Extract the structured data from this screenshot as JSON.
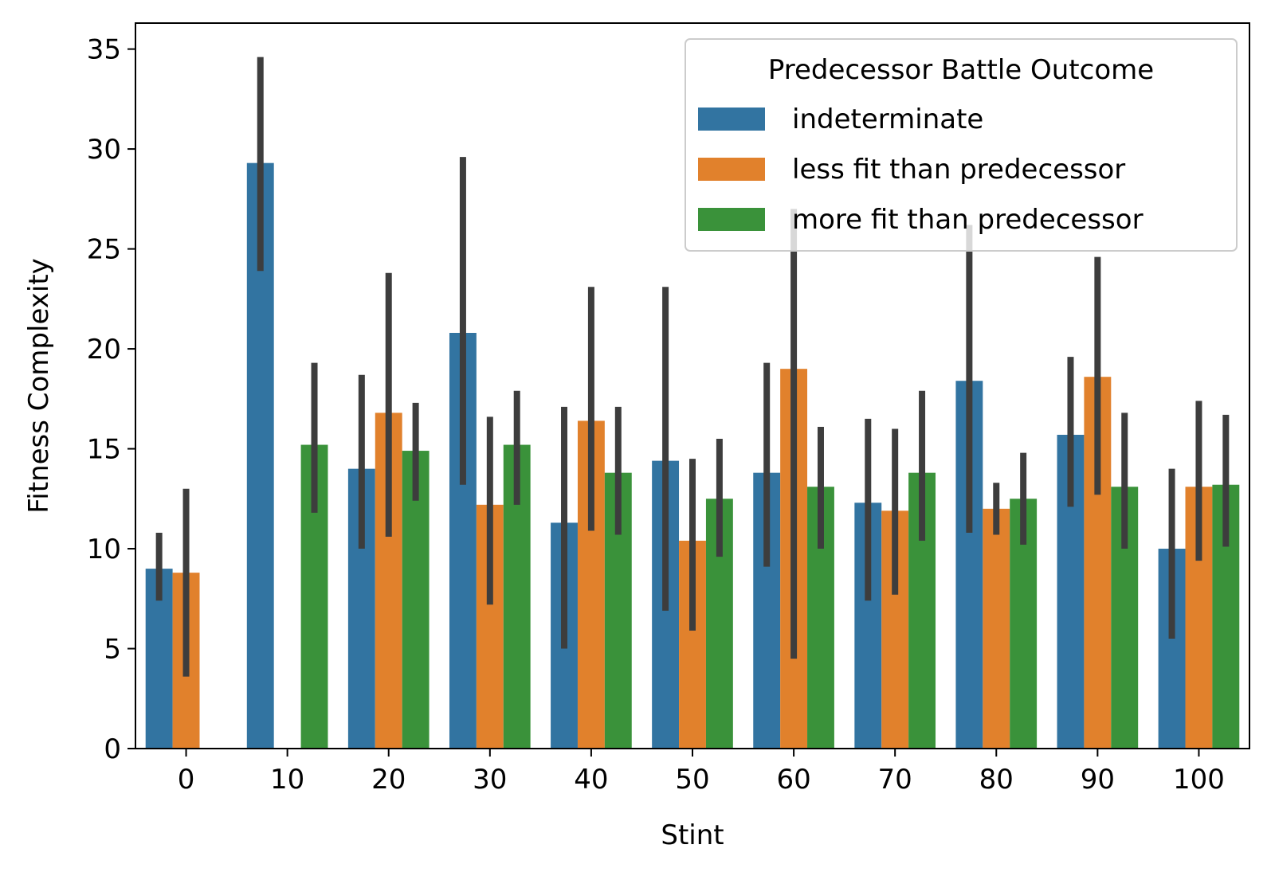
{
  "chart_data": {
    "type": "bar",
    "xlabel": "Stint",
    "ylabel": "Fitness Complexity",
    "ylim": [
      0,
      36.3
    ],
    "yticks": [
      0,
      5,
      10,
      15,
      20,
      25,
      30,
      35
    ],
    "categories": [
      "0",
      "10",
      "20",
      "30",
      "40",
      "50",
      "60",
      "70",
      "80",
      "90",
      "100"
    ],
    "legend": {
      "title": "Predecessor Battle Outcome",
      "placement": "top-right"
    },
    "grid": false,
    "series": [
      {
        "name": "indeterminate",
        "color": "#3274a1",
        "values": [
          9.0,
          29.3,
          14.0,
          20.8,
          11.3,
          14.4,
          13.8,
          12.3,
          18.4,
          15.7,
          10.0
        ],
        "ci_low": [
          7.4,
          23.9,
          10.0,
          13.2,
          5.0,
          6.9,
          9.1,
          7.4,
          10.8,
          12.1,
          5.5
        ],
        "ci_high": [
          10.8,
          34.6,
          18.7,
          29.6,
          17.1,
          23.1,
          19.3,
          16.5,
          26.2,
          19.6,
          14.0
        ]
      },
      {
        "name": "less fit than predecessor",
        "color": "#e1812c",
        "values": [
          8.8,
          null,
          16.8,
          12.2,
          16.4,
          10.4,
          19.0,
          11.9,
          12.0,
          18.6,
          13.1
        ],
        "ci_low": [
          3.6,
          null,
          10.6,
          7.2,
          10.9,
          5.9,
          4.5,
          7.7,
          10.7,
          12.7,
          9.4
        ],
        "ci_high": [
          13.0,
          null,
          23.8,
          16.6,
          23.1,
          14.5,
          27.0,
          16.0,
          13.3,
          24.6,
          17.4
        ]
      },
      {
        "name": "more fit than predecessor",
        "color": "#3a923a",
        "values": [
          null,
          15.2,
          14.9,
          15.2,
          13.8,
          12.5,
          13.1,
          13.8,
          12.5,
          13.1,
          13.2
        ],
        "ci_low": [
          null,
          11.8,
          12.4,
          12.2,
          10.7,
          9.6,
          10.0,
          10.4,
          10.2,
          10.0,
          10.1
        ],
        "ci_high": [
          null,
          19.3,
          17.3,
          17.9,
          17.1,
          15.5,
          16.1,
          17.9,
          14.8,
          16.8,
          16.7
        ]
      }
    ]
  }
}
